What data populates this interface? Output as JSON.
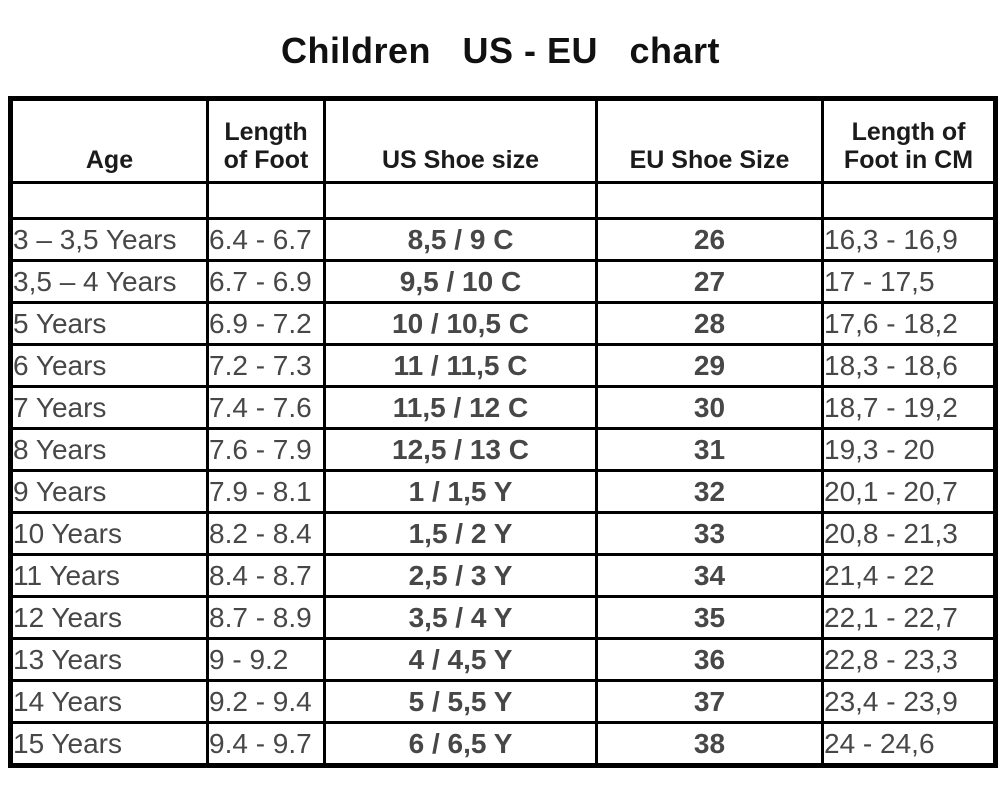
{
  "title_display": "Children   US - EU   chart",
  "chart_data": {
    "type": "table",
    "title": "Children US - EU chart",
    "columns": [
      "Age",
      "Length of Foot",
      "US Shoe size",
      "EU Shoe Size",
      "Length of Foot in CM"
    ],
    "rows": [
      [
        "3 – 3,5 Years",
        "6.4 - 6.7",
        "8,5 / 9 C",
        "26",
        "16,3 - 16,9"
      ],
      [
        "3,5 – 4 Years",
        "6.7 - 6.9",
        "9,5 / 10 C",
        "27",
        "17 - 17,5"
      ],
      [
        "5 Years",
        "6.9 - 7.2",
        "10 / 10,5 C",
        "28",
        "17,6 - 18,2"
      ],
      [
        "6 Years",
        "7.2 - 7.3",
        "11 / 11,5 C",
        "29",
        "18,3 - 18,6"
      ],
      [
        "7 Years",
        "7.4 - 7.6",
        "11,5 / 12 C",
        "30",
        "18,7 - 19,2"
      ],
      [
        "8 Years",
        "7.6 - 7.9",
        "12,5 / 13 C",
        "31",
        "19,3 - 20"
      ],
      [
        "9 Years",
        "7.9 - 8.1",
        "1 / 1,5 Y",
        "32",
        "20,1 - 20,7"
      ],
      [
        "10 Years",
        "8.2 - 8.4",
        "1,5 / 2 Y",
        "33",
        "20,8 - 21,3"
      ],
      [
        "11 Years",
        "8.4 - 8.7",
        "2,5 / 3 Y",
        "34",
        "21,4 - 22"
      ],
      [
        "12 Years",
        "8.7 - 8.9",
        "3,5 / 4 Y",
        "35",
        "22,1 - 22,7"
      ],
      [
        "13 Years",
        "9 - 9.2",
        "4 / 4,5 Y",
        "36",
        "22,8 - 23,3"
      ],
      [
        "14 Years",
        "9.2 - 9.4",
        "5 / 5,5 Y",
        "37",
        "23,4 - 23,9"
      ],
      [
        "15 Years",
        "9.4 - 9.7",
        "6 / 6,5 Y",
        "38",
        "24 - 24,6"
      ]
    ]
  }
}
